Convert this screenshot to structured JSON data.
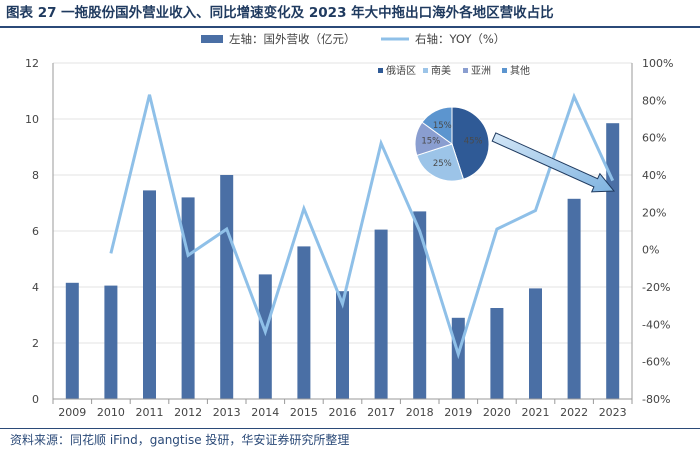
{
  "title": "图表 27 一拖股份国外营业收入、同比增速变化及 2023 年大中拖出口海外各地区营收占比",
  "source": "资料来源：同花顺 iFind，gangtise 投研，华安证券研究所整理",
  "chart_data": {
    "type": "bar+line",
    "categories": [
      "2009",
      "2010",
      "2011",
      "2012",
      "2013",
      "2014",
      "2015",
      "2016",
      "2017",
      "2018",
      "2019",
      "2020",
      "2021",
      "2022",
      "2023"
    ],
    "series": [
      {
        "name": "左轴：国外营收（亿元）",
        "axis": "left",
        "kind": "bar",
        "color": "#4a6fa5",
        "values": [
          4.15,
          4.05,
          7.45,
          7.2,
          8.0,
          4.45,
          5.45,
          3.85,
          6.05,
          6.7,
          2.9,
          3.25,
          3.95,
          7.15,
          9.85
        ]
      },
      {
        "name": "右轴：YOY（%）",
        "axis": "right",
        "kind": "line",
        "color": "#8fc0e8",
        "values": [
          null,
          -2,
          83,
          -3,
          11,
          -44,
          22,
          -29,
          57,
          10,
          -56,
          11,
          21,
          82,
          37
        ]
      }
    ],
    "left_axis": {
      "min": 0,
      "max": 12,
      "ticks": [
        0,
        2,
        4,
        6,
        8,
        10,
        12
      ]
    },
    "right_axis": {
      "min": -80,
      "max": 100,
      "ticks": [
        -80,
        -60,
        -40,
        -20,
        0,
        20,
        40,
        60,
        80,
        100
      ],
      "tick_labels": [
        "-80%",
        "-60%",
        "-40%",
        "-20%",
        "0%",
        "20%",
        "40%",
        "60%",
        "80%",
        "100%"
      ]
    },
    "inset_pie": {
      "title_note": "2023 年大中拖出口海外各地区营收占比",
      "legend": [
        "俄语区",
        "南美",
        "亚洲",
        "其他"
      ],
      "slices": [
        {
          "name": "俄语区",
          "value": 45,
          "label": "45%",
          "color": "#2f5a96"
        },
        {
          "name": "南美",
          "value": 25,
          "label": "25%",
          "color": "#9cc4e8"
        },
        {
          "name": "亚洲",
          "value": 15,
          "label": "15%",
          "color": "#8a9ed0"
        },
        {
          "name": "其他",
          "value": 15,
          "label": "15%",
          "color": "#5c95cf"
        }
      ]
    },
    "arrow_note": "pie points to 2023 bar"
  }
}
